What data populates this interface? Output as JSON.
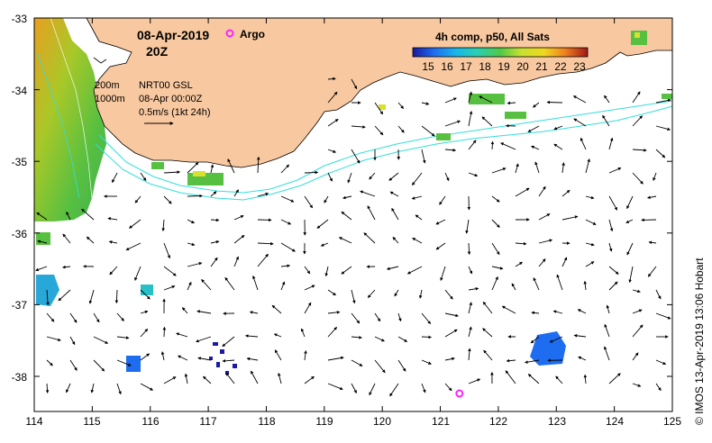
{
  "map": {
    "date": "08-Apr-2019",
    "time": "20Z",
    "argo_label": "Argo",
    "product": "4h comp, p50, All Sats",
    "colorbar_ticks": [
      "15",
      "16",
      "17",
      "18",
      "19",
      "20",
      "21",
      "22",
      "23"
    ],
    "legend": {
      "depth_200": "200m",
      "depth_1000": "1000m",
      "source": "NRT00 GSL",
      "valid_time": "08-Apr 00:00Z",
      "vector_scale": "0.5m/s (1kt 24h)"
    },
    "x_ticks": [
      "114",
      "115",
      "116",
      "117",
      "118",
      "119",
      "120",
      "121",
      "122",
      "123",
      "124",
      "125"
    ],
    "y_ticks": [
      "-33",
      "-34",
      "-35",
      "-36",
      "-37",
      "-38"
    ],
    "credit": "© IMOS 13-Apr-2019 13:06 Hobart",
    "argo_float": {
      "lon": 121.33,
      "lat": -38.23
    },
    "colors": {
      "land": "#f8c8a0",
      "isobath": "#33dddd",
      "argo": "#ff22ff"
    }
  }
}
